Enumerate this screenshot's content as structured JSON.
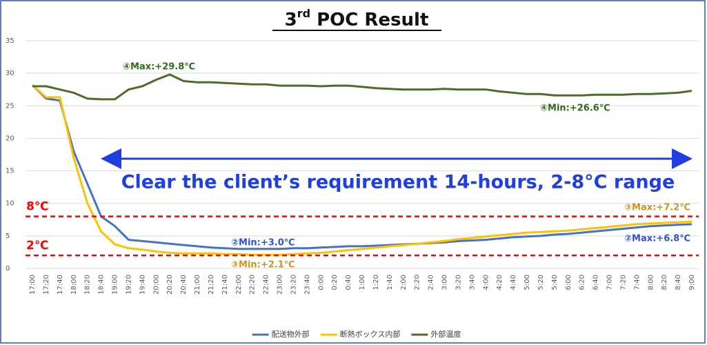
{
  "chart_data": {
    "type": "line",
    "title": {
      "number": "3",
      "suffix": "rd",
      "text": "POC Result"
    },
    "categories": [
      "17:00",
      "17:20",
      "17:40",
      "18:00",
      "18:20",
      "18:40",
      "19:00",
      "19:20",
      "19:40",
      "20:00",
      "20:20",
      "20:40",
      "21:00",
      "21:20",
      "21:40",
      "22:00",
      "22:20",
      "22:40",
      "23:00",
      "23:20",
      "23:40",
      "0:00",
      "0:20",
      "0:40",
      "1:00",
      "1:20",
      "1:40",
      "2:00",
      "2:20",
      "2:40",
      "3:00",
      "3:20",
      "3:40",
      "4:00",
      "4:20",
      "4:40",
      "5:00",
      "5:20",
      "5:40",
      "6:00",
      "6:20",
      "6:40",
      "7:00",
      "7:20",
      "7:40",
      "8:00",
      "8:20",
      "8:40",
      "9:00"
    ],
    "series": [
      {
        "name": "配送物外部",
        "color": "#4472c4",
        "values": [
          28.2,
          26.1,
          25.8,
          18,
          13,
          8,
          6.5,
          4.4,
          4.2,
          4,
          3.8,
          3.6,
          3.4,
          3.2,
          3.1,
          3,
          3,
          3,
          3,
          3.1,
          3.1,
          3.2,
          3.3,
          3.4,
          3.4,
          3.5,
          3.6,
          3.7,
          3.8,
          3.9,
          4,
          4.2,
          4.3,
          4.4,
          4.6,
          4.8,
          4.9,
          5,
          5.2,
          5.3,
          5.5,
          5.7,
          5.9,
          6.1,
          6.3,
          6.5,
          6.6,
          6.7,
          6.8
        ]
      },
      {
        "name": "断熱ボックス内部",
        "color": "#ffc000",
        "values": [
          28.2,
          26.3,
          26.3,
          17,
          10,
          5.7,
          3.7,
          3.1,
          2.9,
          2.6,
          2.4,
          2.3,
          2.3,
          2.3,
          2.2,
          2.2,
          2.1,
          2.1,
          2.1,
          2.2,
          2.3,
          2.4,
          2.6,
          2.8,
          3,
          3.2,
          3.4,
          3.6,
          3.8,
          4,
          4.2,
          4.5,
          4.7,
          4.9,
          5.1,
          5.3,
          5.5,
          5.6,
          5.7,
          5.8,
          6,
          6.2,
          6.4,
          6.6,
          6.8,
          6.9,
          7,
          7.1,
          7.2
        ]
      },
      {
        "name": "外部温度",
        "color": "#4e6b2a",
        "values": [
          28,
          28,
          27.5,
          27,
          26.1,
          26,
          26,
          27.5,
          28,
          29,
          29.8,
          28.8,
          28.6,
          28.6,
          28.5,
          28.4,
          28.3,
          28.3,
          28.1,
          28.1,
          28.1,
          28,
          28.1,
          28.1,
          27.9,
          27.7,
          27.6,
          27.5,
          27.5,
          27.5,
          27.6,
          27.5,
          27.5,
          27.5,
          27.2,
          27,
          26.8,
          26.8,
          26.6,
          26.6,
          26.6,
          26.7,
          26.7,
          26.7,
          26.8,
          26.8,
          26.9,
          27,
          27.3
        ]
      }
    ],
    "ylim": [
      0,
      35
    ],
    "yticks": [
      0,
      5,
      10,
      15,
      20,
      25,
      30,
      35
    ],
    "grid": true,
    "legend": "bottom",
    "reference_lines": [
      {
        "value": 8,
        "label": "8℃"
      },
      {
        "value": 2,
        "label": "2℃"
      }
    ],
    "reference_color": "#ff0000",
    "annotations": [
      {
        "text": "④Max:+29.8℃",
        "color": "#2e6b1a"
      },
      {
        "text": "④Min:+26.6℃",
        "color": "#2e6b1a"
      },
      {
        "text": "②Min:+3.0℃",
        "color": "#2f52d6"
      },
      {
        "text": "③Min:+2.1℃",
        "color": "#c9961a"
      },
      {
        "text": "③Max:+7.2℃",
        "color": "#c9961a"
      },
      {
        "text": "②Max:+6.8℃",
        "color": "#2f52d6"
      }
    ],
    "requirement_note": "Clear the client’s requirement 14-hours, 2-8°C range"
  }
}
